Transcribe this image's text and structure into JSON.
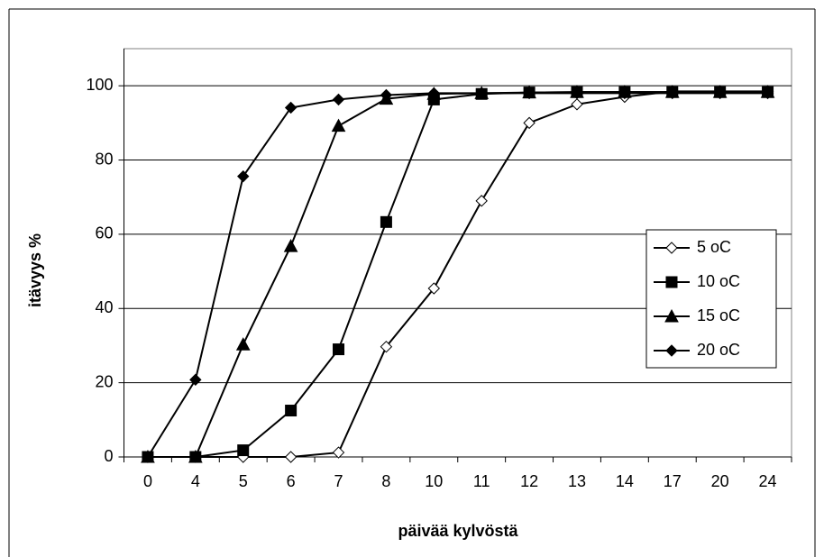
{
  "chart_data": {
    "type": "line",
    "xlabel": "päivää kylvöstä",
    "ylabel": "itävyys %",
    "categories": [
      "0",
      "4",
      "5",
      "6",
      "7",
      "8",
      "10",
      "11",
      "12",
      "13",
      "14",
      "17",
      "20",
      "24"
    ],
    "ylim": [
      0,
      110
    ],
    "yticks": [
      0,
      20,
      40,
      60,
      80,
      100
    ],
    "grid": true,
    "legend": "right",
    "series": [
      {
        "name": "5 oC",
        "color": "#000000",
        "marker": "diamond-open",
        "values": [
          0,
          0,
          0,
          0,
          1.2,
          29.7,
          45.4,
          69,
          90,
          95,
          97,
          98.5,
          98.5,
          98.5
        ]
      },
      {
        "name": "10 oC",
        "color": "#000000",
        "marker": "square",
        "values": [
          0,
          0,
          1.8,
          12.5,
          29,
          63.3,
          96.3,
          97.8,
          98.2,
          98.3,
          98.3,
          98.3,
          98.3,
          98.3
        ]
      },
      {
        "name": "15 oC",
        "color": "#000000",
        "marker": "triangle",
        "values": [
          0,
          0,
          30.3,
          56.8,
          89.2,
          96.5,
          97.8,
          98,
          98.2,
          98.3,
          98.3,
          98.3,
          98.3,
          98.3
        ]
      },
      {
        "name": "20 oC",
        "color": "#000000",
        "marker": "diamond",
        "values": [
          0,
          20.8,
          75.6,
          94.1,
          96.3,
          97.5,
          98,
          98,
          98,
          98,
          98,
          98,
          98,
          98
        ]
      }
    ]
  }
}
